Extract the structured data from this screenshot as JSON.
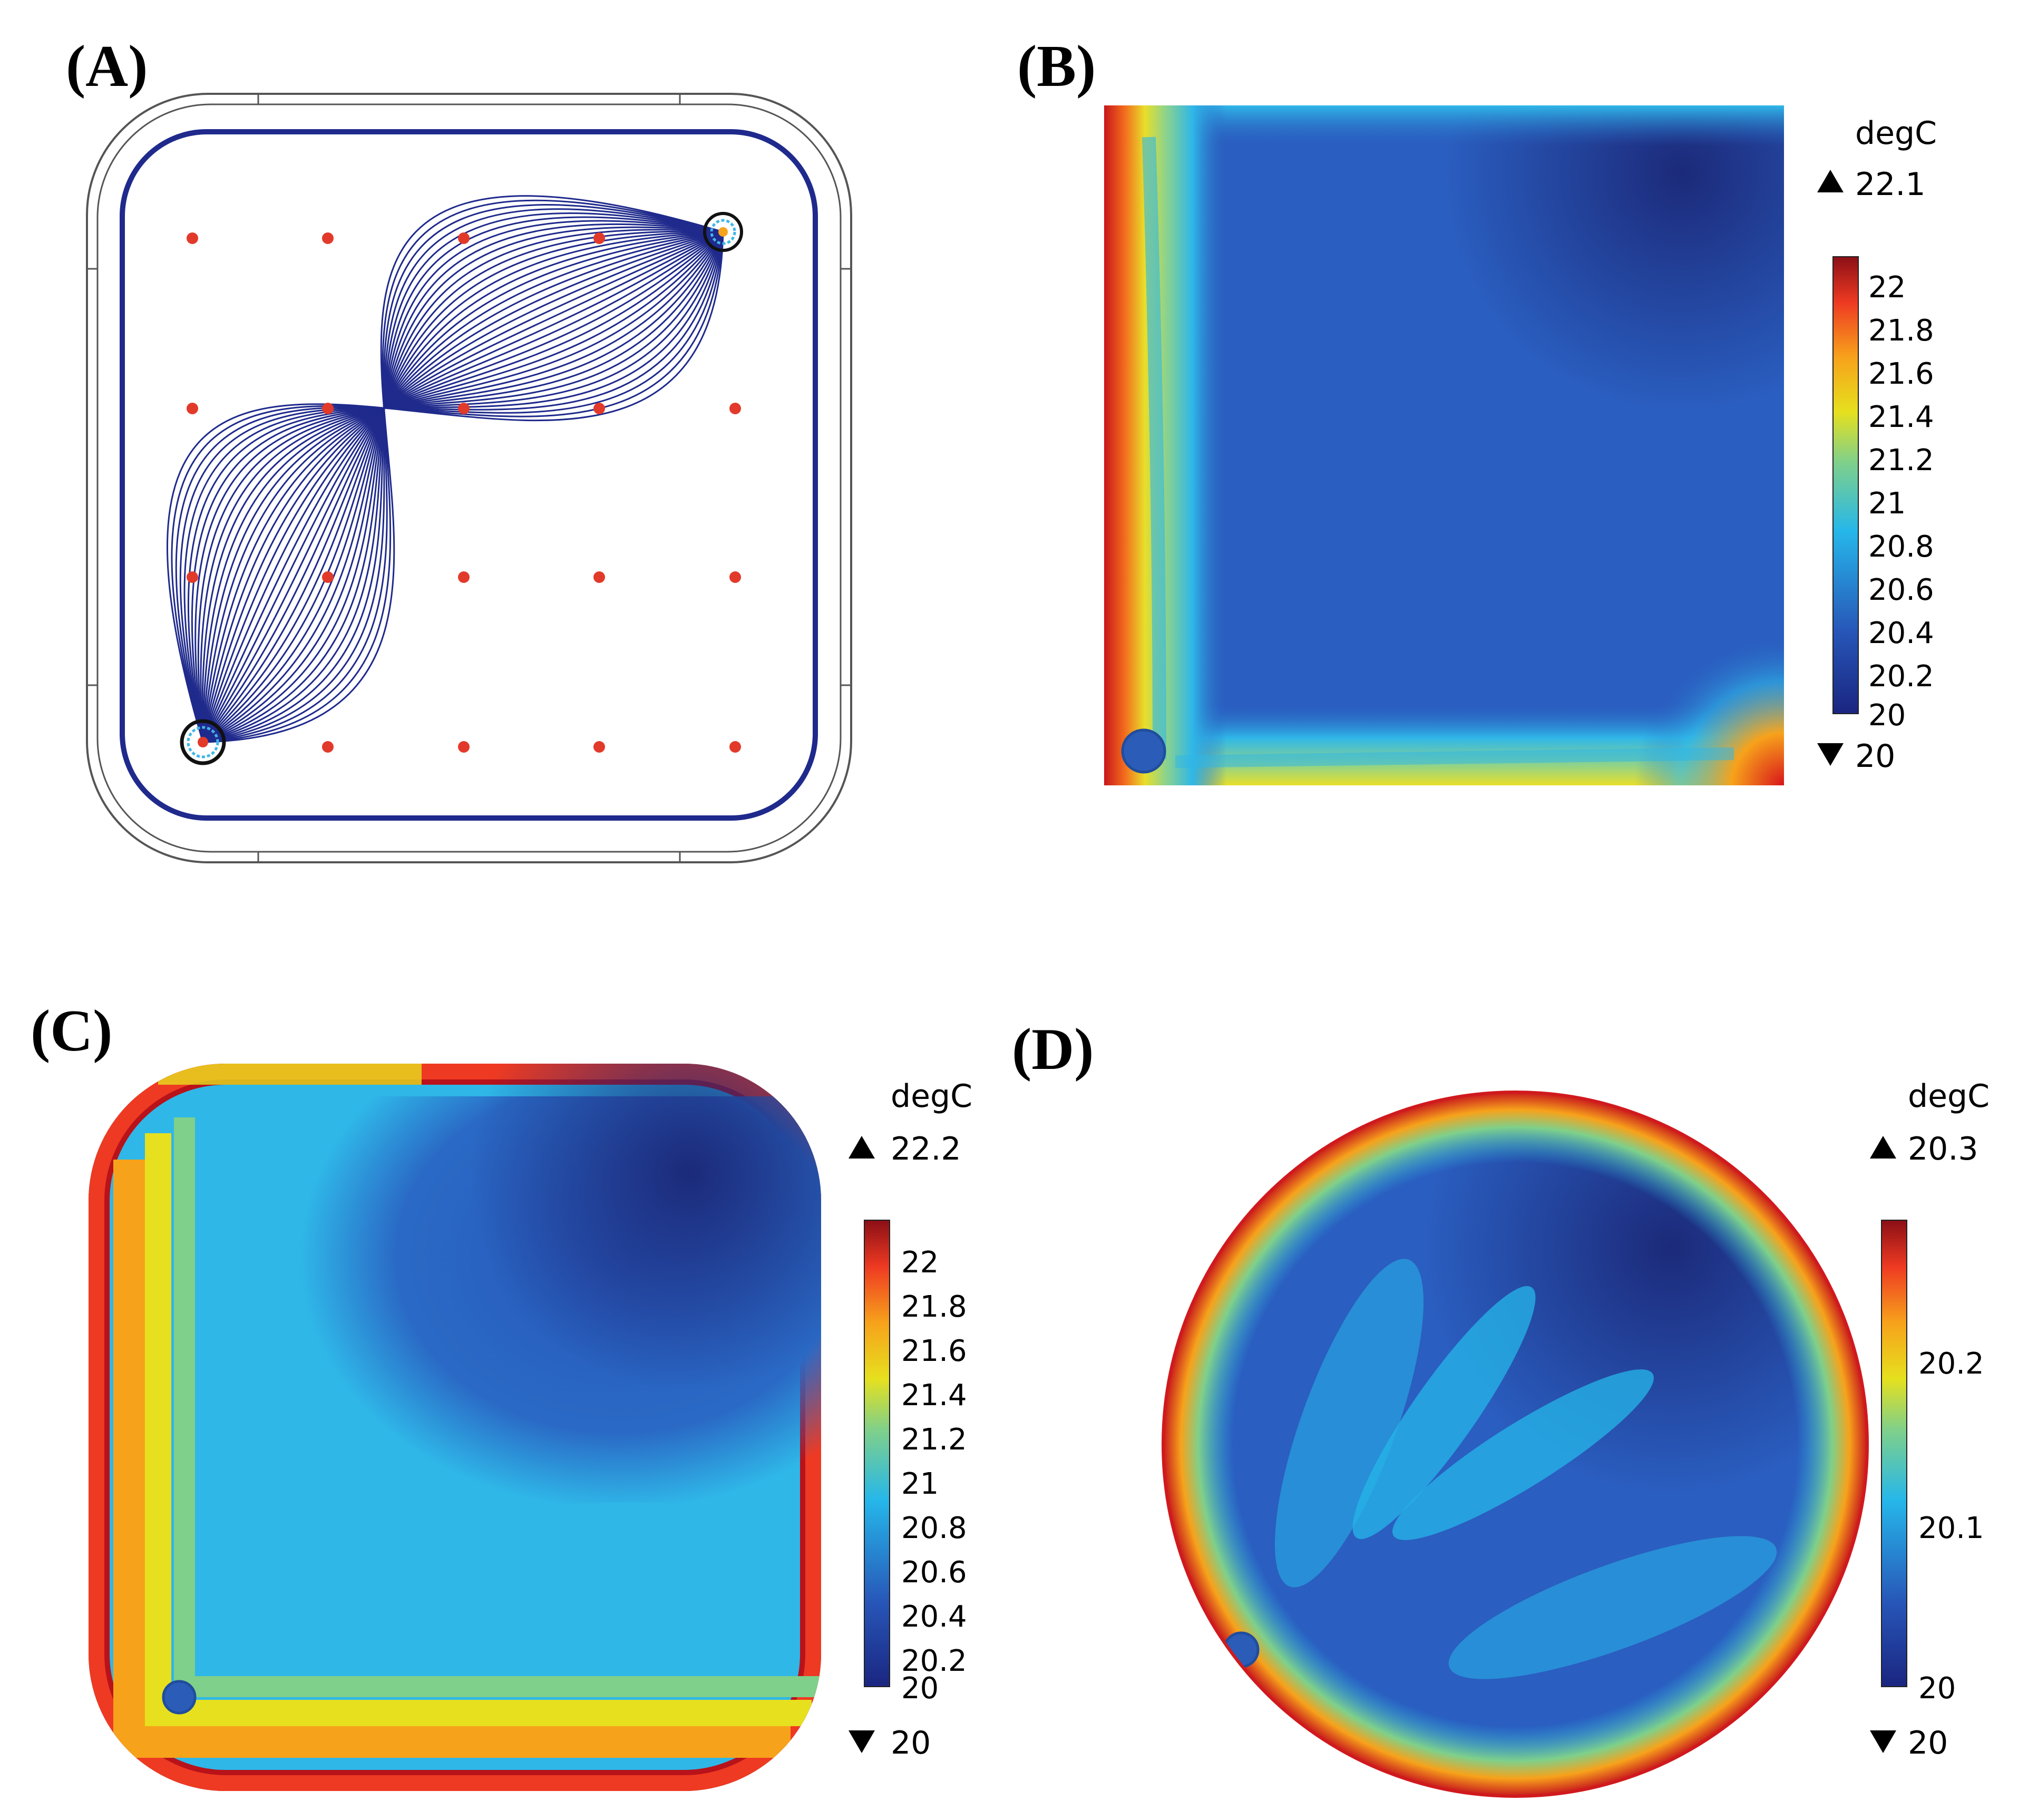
{
  "panels": [
    {
      "label": "(A)",
      "kind": "streamlines",
      "colors": {
        "streamline": "#1f2a8c",
        "point": "#e23a2a",
        "wall": "#333333"
      }
    },
    {
      "label": "(B)",
      "kind": "temperature-map",
      "shape": "square",
      "unit": "degC",
      "max_label": "22.1",
      "min_label": "20",
      "colorbar_ticks": [
        "22",
        "21.8",
        "21.6",
        "21.4",
        "21.2",
        "21",
        "20.8",
        "20.6",
        "20.4",
        "20.2",
        "20"
      ]
    },
    {
      "label": "(C)",
      "kind": "temperature-map",
      "shape": "rounded-square",
      "unit": "degC",
      "max_label": "22.2",
      "min_label": "20",
      "colorbar_ticks": [
        "22",
        "21.8",
        "21.6",
        "21.4",
        "21.2",
        "21",
        "20.8",
        "20.6",
        "20.4",
        "20.2",
        "20"
      ]
    },
    {
      "label": "(D)",
      "kind": "temperature-map",
      "shape": "circle",
      "unit": "degC",
      "max_label": "20.3",
      "min_label": "20",
      "colorbar_ticks": [
        "20.2",
        "20.1",
        "20"
      ]
    }
  ],
  "colormap": [
    "#1a2580",
    "#2756b8",
    "#26b7ea",
    "#7fd08a",
    "#e6e01e",
    "#f7a21b",
    "#ee3a22",
    "#8b0f16"
  ]
}
